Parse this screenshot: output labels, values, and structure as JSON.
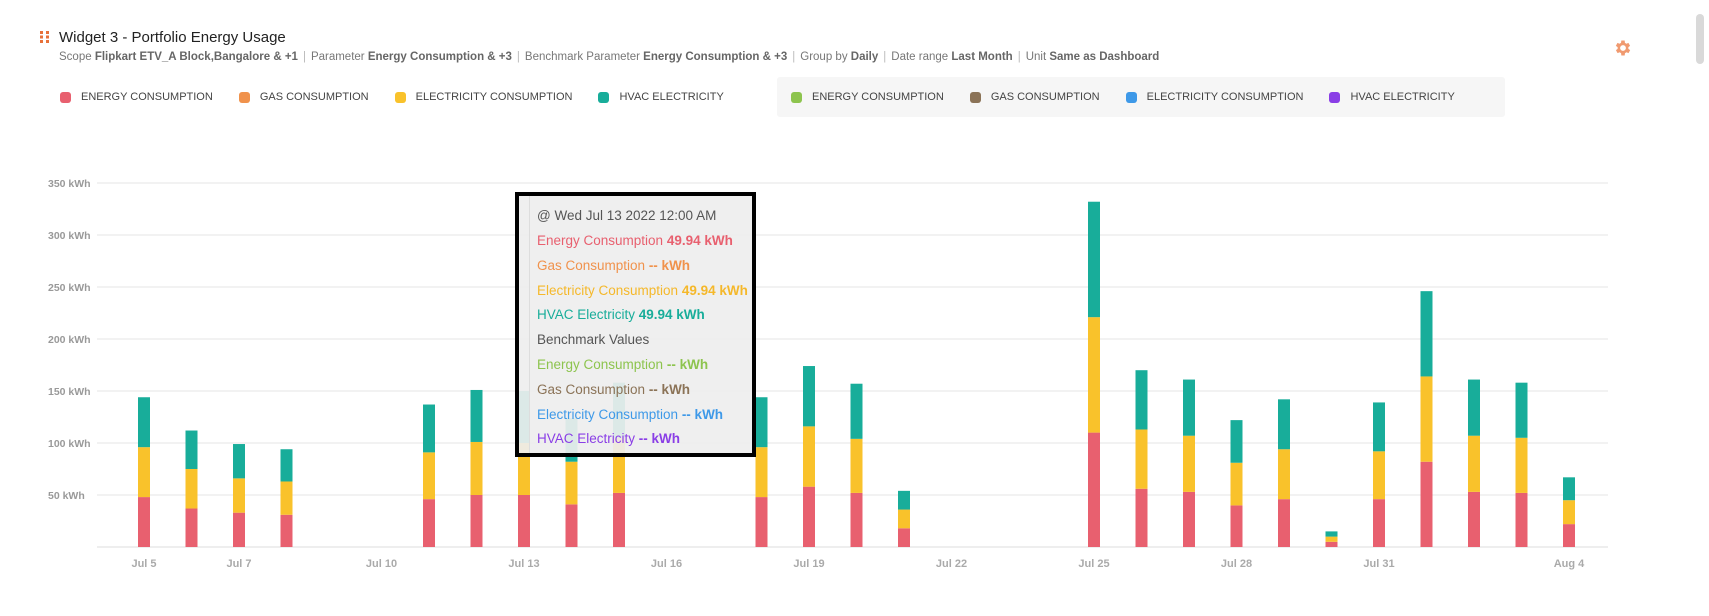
{
  "widget": {
    "title": "Widget 3 - Portfolio Energy Usage",
    "meta": [
      {
        "label": "Scope",
        "value": "Flipkart ETV_A Block,Bangalore & +1"
      },
      {
        "label": "Parameter",
        "value": "Energy Consumption & +3"
      },
      {
        "label": "Benchmark Parameter",
        "value": "Energy Consumption & +3"
      },
      {
        "label": "Group by",
        "value": "Daily"
      },
      {
        "label": "Date range",
        "value": "Last Month"
      },
      {
        "label": "Unit",
        "value": "Same as Dashboard"
      }
    ],
    "icons": {
      "drag": "drag-handle-icon",
      "settings": "gear-icon"
    }
  },
  "legend": {
    "primary": [
      {
        "label": "ENERGY CONSUMPTION",
        "color": "#e8606f"
      },
      {
        "label": "GAS CONSUMPTION",
        "color": "#f0924c"
      },
      {
        "label": "ELECTRICITY CONSUMPTION",
        "color": "#f9c22b"
      },
      {
        "label": "HVAC ELECTRICITY",
        "color": "#18ad9a"
      }
    ],
    "benchmark": [
      {
        "label": "ENERGY CONSUMPTION",
        "color": "#8dc44e"
      },
      {
        "label": "GAS CONSUMPTION",
        "color": "#8b7357"
      },
      {
        "label": "ELECTRICITY CONSUMPTION",
        "color": "#3e99e8"
      },
      {
        "label": "HVAC ELECTRICITY",
        "color": "#8a3ee6"
      }
    ]
  },
  "tooltip": {
    "header": "@ Wed Jul 13 2022 12:00 AM",
    "lines": [
      {
        "label": "Energy Consumption",
        "value": "49.94 kWh",
        "color": "#e8606f"
      },
      {
        "label": "Gas Consumption",
        "value": "-- kWh",
        "color": "#f0924c"
      },
      {
        "label": "Electricity Consumption",
        "value": "49.94 kWh",
        "color": "#f5b82a"
      },
      {
        "label": "HVAC Electricity",
        "value": "49.94 kWh",
        "color": "#18ad9a"
      },
      {
        "label": "Benchmark Values",
        "value": "",
        "color": "#555555"
      },
      {
        "label": "Energy Consumption",
        "value": "-- kWh",
        "color": "#8dc44e"
      },
      {
        "label": "Gas Consumption",
        "value": "-- kWh",
        "color": "#8b7357"
      },
      {
        "label": "Electricity Consumption",
        "value": "-- kWh",
        "color": "#3e99e8"
      },
      {
        "label": "HVAC Electricity",
        "value": "-- kWh",
        "color": "#8a3ee6"
      }
    ]
  },
  "chart_data": {
    "type": "bar",
    "stacked": true,
    "x": [
      "Jul 5",
      "Jul 6",
      "Jul 7",
      "Jul 8",
      "Jul 9",
      "Jul 10",
      "Jul 11",
      "Jul 12",
      "Jul 13",
      "Jul 14",
      "Jul 15",
      "Jul 16",
      "Jul 17",
      "Jul 18",
      "Jul 19",
      "Jul 20",
      "Jul 21",
      "Jul 22",
      "Jul 23",
      "Jul 24",
      "Jul 25",
      "Jul 26",
      "Jul 27",
      "Jul 28",
      "Jul 29",
      "Jul 30",
      "Jul 31",
      "Aug 1",
      "Aug 2",
      "Aug 3",
      "Aug 4"
    ],
    "xticks": [
      "Jul 5",
      "Jul 7",
      "Jul 10",
      "Jul 13",
      "Jul 16",
      "Jul 19",
      "Jul 22",
      "Jul 25",
      "Jul 28",
      "Jul 31",
      "Aug 4"
    ],
    "yticks": [
      50,
      100,
      150,
      200,
      250,
      300,
      350
    ],
    "ylim": [
      0,
      350
    ],
    "yunit": "kWh",
    "series": [
      {
        "name": "ENERGY CONSUMPTION",
        "color": "#e8606f",
        "values": [
          48,
          37,
          33,
          31,
          0,
          0,
          46,
          50,
          50,
          41,
          52,
          0,
          0,
          48,
          58,
          52,
          18,
          0,
          0,
          0,
          110,
          56,
          53,
          40,
          46,
          5,
          46,
          82,
          53,
          52,
          22
        ]
      },
      {
        "name": "ELECTRICITY CONSUMPTION",
        "color": "#f9c22b",
        "values": [
          48,
          38,
          33,
          32,
          0,
          0,
          45,
          51,
          50,
          41,
          53,
          0,
          0,
          48,
          58,
          52,
          18,
          0,
          0,
          0,
          111,
          57,
          54,
          41,
          48,
          5,
          46,
          82,
          54,
          53,
          23
        ]
      },
      {
        "name": "HVAC ELECTRICITY",
        "color": "#18ad9a",
        "values": [
          48,
          37,
          33,
          31,
          0,
          0,
          46,
          50,
          50,
          42,
          53,
          0,
          0,
          48,
          58,
          53,
          18,
          0,
          0,
          0,
          111,
          57,
          54,
          41,
          48,
          5,
          47,
          82,
          54,
          53,
          22
        ]
      }
    ],
    "grid": true
  }
}
